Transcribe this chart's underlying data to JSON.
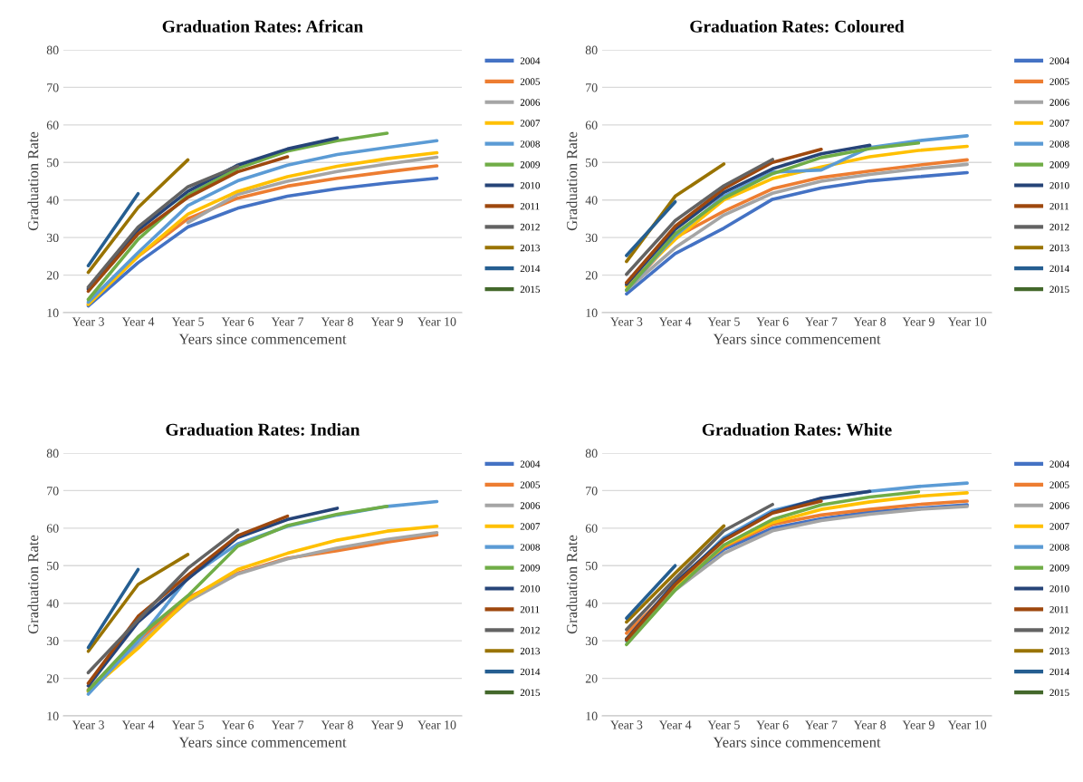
{
  "chart_data": [
    {
      "type": "line",
      "title": "Graduation Rates: African",
      "xlabel": "Years since commencement",
      "ylabel": "Graduation Rate",
      "categories": [
        "Year 3",
        "Year 4",
        "Year 5",
        "Year 6",
        "Year 7",
        "Year 8",
        "Year 9",
        "Year 10"
      ],
      "ylim": [
        10,
        80
      ],
      "yticks": [
        10,
        20,
        30,
        40,
        50,
        60,
        70,
        80
      ],
      "grid": "y",
      "legend": "right",
      "series": [
        {
          "name": "2004",
          "color": "#4472c4",
          "values": [
            11.8,
            23.3,
            32.8,
            37.8,
            41,
            43,
            44.5,
            45.8
          ]
        },
        {
          "name": "2005",
          "color": "#ed7d31",
          "values": [
            12.3,
            25,
            35,
            40.5,
            43.7,
            45.8,
            47.5,
            49.1
          ]
        },
        {
          "name": "2006",
          "color": "#a5a5a5",
          "values": [
            null,
            null,
            34,
            41.5,
            45,
            47.6,
            49.6,
            51.4
          ]
        },
        {
          "name": "2007",
          "color": "#ffc000",
          "values": [
            12.2,
            25,
            36.2,
            42.3,
            46.2,
            49,
            51,
            52.6
          ]
        },
        {
          "name": "2008",
          "color": "#5b9bd5",
          "values": [
            12.8,
            26,
            38.5,
            45.1,
            49.3,
            52.1,
            54,
            55.8
          ]
        },
        {
          "name": "2009",
          "color": "#70ad47",
          "values": [
            13.5,
            29.5,
            41.3,
            48.4,
            53,
            55.8,
            57.8,
            null
          ]
        },
        {
          "name": "2010",
          "color": "#264478",
          "values": [
            16.3,
            32,
            42.3,
            49.3,
            53.6,
            56.5,
            null,
            null
          ]
        },
        {
          "name": "2011",
          "color": "#9e480e",
          "values": [
            15.7,
            31,
            40.7,
            47.5,
            51.5,
            null,
            null,
            null
          ]
        },
        {
          "name": "2012",
          "color": "#636363",
          "values": [
            16.8,
            32.8,
            43.5,
            49,
            null,
            null,
            null,
            null
          ]
        },
        {
          "name": "2013",
          "color": "#997300",
          "values": [
            20.7,
            38,
            50.7,
            null,
            null,
            null,
            null,
            null
          ]
        },
        {
          "name": "2014",
          "color": "#255e91",
          "values": [
            22.5,
            41.7,
            null,
            null,
            null,
            null,
            null,
            null
          ]
        },
        {
          "name": "2015",
          "color": "#43682b",
          "values": [
            null,
            null,
            null,
            null,
            null,
            null,
            null,
            null
          ]
        }
      ]
    },
    {
      "type": "line",
      "title": "Graduation Rates: Coloured",
      "xlabel": "Years since commencement",
      "ylabel": "Graduation Rate",
      "categories": [
        "Year 3",
        "Year 4",
        "Year 5",
        "Year 6",
        "Year 7",
        "Year 8",
        "Year 9",
        "Year 10"
      ],
      "ylim": [
        10,
        80
      ],
      "yticks": [
        10,
        20,
        30,
        40,
        50,
        60,
        70,
        80
      ],
      "grid": "y",
      "legend": "right",
      "series": [
        {
          "name": "2004",
          "color": "#4472c4",
          "values": [
            15,
            25.7,
            32.5,
            40.2,
            43.2,
            45.1,
            46.2,
            47.3
          ]
        },
        {
          "name": "2005",
          "color": "#ed7d31",
          "values": [
            16,
            30,
            37,
            43,
            46,
            47.7,
            49.3,
            50.7
          ]
        },
        {
          "name": "2006",
          "color": "#a5a5a5",
          "values": [
            16,
            27.3,
            36,
            41.8,
            45,
            46.8,
            48.3,
            49.5
          ]
        },
        {
          "name": "2007",
          "color": "#ffc000",
          "values": [
            17,
            29.5,
            40,
            45.7,
            48.8,
            51.5,
            53.2,
            54.3
          ]
        },
        {
          "name": "2008",
          "color": "#5b9bd5",
          "values": [
            16,
            30.5,
            41,
            47.4,
            48,
            54,
            55.8,
            57.1
          ]
        },
        {
          "name": "2009",
          "color": "#70ad47",
          "values": [
            16,
            31,
            40.5,
            47,
            51.3,
            53.7,
            55.2,
            null
          ]
        },
        {
          "name": "2010",
          "color": "#264478",
          "values": [
            17.5,
            32.2,
            42,
            48.3,
            52.3,
            54.6,
            null,
            null
          ]
        },
        {
          "name": "2011",
          "color": "#9e480e",
          "values": [
            18,
            33,
            43,
            50,
            53.5,
            null,
            null,
            null
          ]
        },
        {
          "name": "2012",
          "color": "#636363",
          "values": [
            20.2,
            34.5,
            43.8,
            50.8,
            null,
            null,
            null,
            null
          ]
        },
        {
          "name": "2013",
          "color": "#997300",
          "values": [
            23.6,
            41,
            49.6,
            null,
            null,
            null,
            null,
            null
          ]
        },
        {
          "name": "2014",
          "color": "#255e91",
          "values": [
            25.2,
            39.5,
            null,
            null,
            null,
            null,
            null,
            null
          ]
        },
        {
          "name": "2015",
          "color": "#43682b",
          "values": [
            null,
            null,
            null,
            null,
            null,
            null,
            null,
            null
          ]
        }
      ]
    },
    {
      "type": "line",
      "title": "Graduation Rates: Indian",
      "xlabel": "Years since commencement",
      "ylabel": "Graduation Rate",
      "categories": [
        "Year 3",
        "Year 4",
        "Year 5",
        "Year 6",
        "Year 7",
        "Year 8",
        "Year 9",
        "Year 10"
      ],
      "ylim": [
        10,
        80
      ],
      "yticks": [
        10,
        20,
        30,
        40,
        50,
        60,
        70,
        80
      ],
      "grid": "y",
      "legend": "right",
      "series": [
        {
          "name": "2004",
          "color": "#4472c4",
          "values": [
            null,
            null,
            null,
            null,
            null,
            null,
            null,
            null
          ]
        },
        {
          "name": "2005",
          "color": "#ed7d31",
          "values": [
            17,
            30,
            41.5,
            48,
            52,
            54,
            56.3,
            58.2
          ]
        },
        {
          "name": "2006",
          "color": "#a5a5a5",
          "values": [
            16.5,
            29,
            40.5,
            47.8,
            51.8,
            54.7,
            57,
            58.8
          ]
        },
        {
          "name": "2007",
          "color": "#ffc000",
          "values": [
            16.5,
            28,
            41,
            49,
            53.3,
            56.8,
            59.2,
            60.5
          ]
        },
        {
          "name": "2008",
          "color": "#5b9bd5",
          "values": [
            15.8,
            30,
            46.8,
            55.8,
            60.5,
            63.5,
            65.8,
            67.1
          ]
        },
        {
          "name": "2009",
          "color": "#70ad47",
          "values": [
            16.8,
            31,
            42,
            55.2,
            60.7,
            63.7,
            65.8,
            null
          ]
        },
        {
          "name": "2010",
          "color": "#264478",
          "values": [
            18,
            35,
            46.5,
            57.5,
            62.3,
            65.3,
            null,
            null
          ]
        },
        {
          "name": "2011",
          "color": "#9e480e",
          "values": [
            18.7,
            36.5,
            47.5,
            58,
            63.2,
            null,
            null,
            null
          ]
        },
        {
          "name": "2012",
          "color": "#636363",
          "values": [
            21.5,
            35.5,
            49.3,
            59.5,
            null,
            null,
            null,
            null
          ]
        },
        {
          "name": "2013",
          "color": "#997300",
          "values": [
            27.2,
            45,
            53,
            null,
            null,
            null,
            null,
            null
          ]
        },
        {
          "name": "2014",
          "color": "#255e91",
          "values": [
            28.2,
            49,
            null,
            null,
            null,
            null,
            null,
            null
          ]
        },
        {
          "name": "2015",
          "color": "#43682b",
          "values": [
            null,
            null,
            null,
            null,
            null,
            null,
            null,
            null
          ]
        }
      ]
    },
    {
      "type": "line",
      "title": "Graduation Rates: White",
      "xlabel": "Years since commencement",
      "ylabel": "Graduation Rate",
      "categories": [
        "Year 3",
        "Year 4",
        "Year 5",
        "Year 6",
        "Year 7",
        "Year 8",
        "Year 9",
        "Year 10"
      ],
      "ylim": [
        10,
        80
      ],
      "yticks": [
        10,
        20,
        30,
        40,
        50,
        60,
        70,
        80
      ],
      "grid": "y",
      "legend": "right",
      "series": [
        {
          "name": "2004",
          "color": "#4472c4",
          "values": [
            30,
            44.5,
            54.3,
            60,
            62.5,
            64.3,
            65.3,
            66.2
          ]
        },
        {
          "name": "2005",
          "color": "#ed7d31",
          "values": [
            32,
            44.5,
            55,
            61,
            63.5,
            65,
            66.3,
            67.2
          ]
        },
        {
          "name": "2006",
          "color": "#a5a5a5",
          "values": [
            30.5,
            43.5,
            53.3,
            59.3,
            62,
            63.7,
            65,
            65.8
          ]
        },
        {
          "name": "2007",
          "color": "#ffc000",
          "values": [
            30.5,
            44,
            55.3,
            61.5,
            65,
            67,
            68.5,
            69.4
          ]
        },
        {
          "name": "2008",
          "color": "#5b9bd5",
          "values": [
            30,
            45,
            57.5,
            64.7,
            67.8,
            69.8,
            71.1,
            72
          ]
        },
        {
          "name": "2009",
          "color": "#70ad47",
          "values": [
            29,
            43.5,
            55.5,
            62.3,
            66.2,
            68.3,
            69.7,
            null
          ]
        },
        {
          "name": "2010",
          "color": "#264478",
          "values": [
            30.5,
            45.5,
            57,
            64.2,
            68,
            69.8,
            null,
            null
          ]
        },
        {
          "name": "2011",
          "color": "#9e480e",
          "values": [
            30.2,
            45,
            56.7,
            64,
            67.2,
            null,
            null,
            null
          ]
        },
        {
          "name": "2012",
          "color": "#636363",
          "values": [
            33,
            46.5,
            59.3,
            66.3,
            null,
            null,
            null,
            null
          ]
        },
        {
          "name": "2013",
          "color": "#997300",
          "values": [
            35,
            48,
            60.6,
            null,
            null,
            null,
            null,
            null
          ]
        },
        {
          "name": "2014",
          "color": "#255e91",
          "values": [
            36,
            50,
            null,
            null,
            null,
            null,
            null,
            null
          ]
        },
        {
          "name": "2015",
          "color": "#43682b",
          "values": [
            null,
            null,
            null,
            null,
            null,
            null,
            null,
            null
          ]
        }
      ]
    }
  ]
}
